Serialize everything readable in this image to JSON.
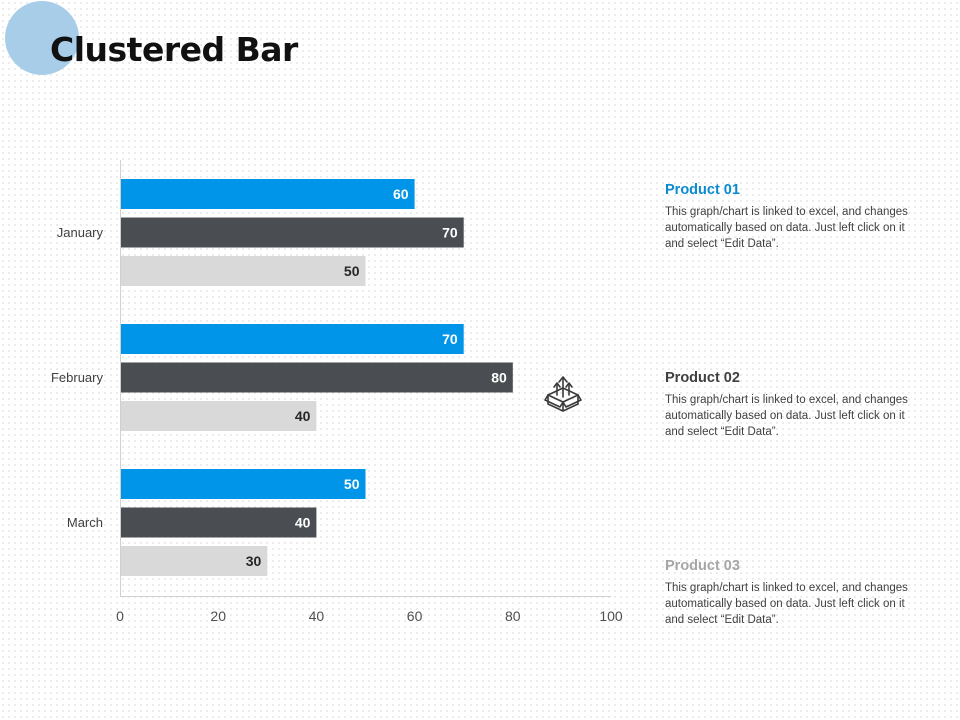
{
  "title": "Clustered Bar",
  "chart_data": {
    "type": "bar",
    "orientation": "horizontal",
    "categories": [
      "January",
      "February",
      "March"
    ],
    "series": [
      {
        "name": "Product 01",
        "values": [
          60,
          70,
          50
        ],
        "color": "#0095e8"
      },
      {
        "name": "Product 02",
        "values": [
          70,
          80,
          40
        ],
        "color": "#4a4d52"
      },
      {
        "name": "Product 03",
        "values": [
          50,
          40,
          30
        ],
        "color": "#d9d9d9"
      }
    ],
    "xlim": [
      0,
      100
    ],
    "x_ticks": [
      "0",
      "20",
      "40",
      "60",
      "80",
      "100"
    ],
    "data_label_colors": [
      "#ffffff",
      "#ffffff",
      "#262626"
    ],
    "grid": false,
    "legend": "right"
  },
  "products": [
    {
      "title": "Product 01",
      "color": "#0a8ad0",
      "desc": "This graph/chart is linked to excel, and changes automatically based on data. Just left click on it and select “Edit Data”."
    },
    {
      "title": "Product 02",
      "color": "#404040",
      "desc": "This graph/chart is linked to excel, and changes automatically based on data. Just left click on it and select “Edit Data”."
    },
    {
      "title": "Product 03",
      "color": "#a6a6a6",
      "desc": "This graph/chart is linked to excel, and changes automatically based on data. Just left click on it and select “Edit Data”."
    }
  ],
  "icons": {
    "center": "box-with-arrows-icon",
    "decoration": "circle-decoration"
  }
}
